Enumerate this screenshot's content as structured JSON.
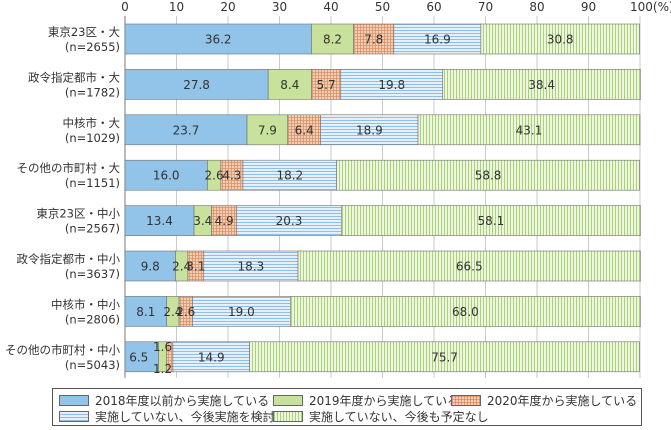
{
  "chart_data": {
    "type": "bar",
    "orientation": "horizontal",
    "stacked": true,
    "unit": "(%)",
    "xlim": [
      0,
      100
    ],
    "x_ticks": [
      "0",
      "10",
      "20",
      "30",
      "40",
      "50",
      "60",
      "70",
      "80",
      "90",
      "100"
    ],
    "grid": true,
    "legend_position": "bottom",
    "categories": [
      [
        "東京23区・大",
        "(n=2655)"
      ],
      [
        "政令指定都市・大",
        "(n=1782)"
      ],
      [
        "中核市・大",
        "(n=1029)"
      ],
      [
        "その他の市町村・大",
        "(n=1151)"
      ],
      [
        "東京23区・中小",
        "(n=2567)"
      ],
      [
        "政令指定都市・中小",
        "(n=3637)"
      ],
      [
        "中核市・中小",
        "(n=2806)"
      ],
      [
        "その他の市町村・中小",
        "(n=5043)"
      ]
    ],
    "series": [
      {
        "name": "2018年度以前から実施している",
        "color": "#92c4ea",
        "values": [
          36.2,
          27.8,
          23.7,
          16.0,
          13.4,
          9.8,
          8.1,
          6.5
        ]
      },
      {
        "name": "2019年度から実施している",
        "color": "#c8e29c",
        "values": [
          8.2,
          8.4,
          7.9,
          2.6,
          3.4,
          2.4,
          2.4,
          1.6
        ]
      },
      {
        "name": "2020年度から実施している",
        "color": "#f7cdb0",
        "values": [
          7.8,
          5.7,
          6.4,
          4.3,
          4.9,
          3.1,
          2.6,
          1.2
        ]
      },
      {
        "name": "実施していない、今後実施を検討",
        "color": "#d6e8f8",
        "values": [
          16.9,
          19.8,
          18.9,
          18.2,
          20.3,
          18.3,
          19.0,
          14.9
        ]
      },
      {
        "name": "実施していない、今後も予定なし",
        "color": "#e6f2d2",
        "values": [
          30.8,
          38.4,
          43.1,
          58.8,
          58.1,
          66.5,
          68.0,
          75.7
        ]
      }
    ],
    "data_labels": [
      [
        "36.2",
        "8.2",
        "7.8",
        "16.9",
        "30.8"
      ],
      [
        "27.8",
        "8.4",
        "5.7",
        "19.8",
        "38.4"
      ],
      [
        "23.7",
        "7.9",
        "6.4",
        "18.9",
        "43.1"
      ],
      [
        "16.0",
        "2.6",
        "4.3",
        "18.2",
        "58.8"
      ],
      [
        "13.4",
        "3.4",
        "4.9",
        "20.3",
        "58.1"
      ],
      [
        "9.8",
        "2.4",
        "3.1",
        "18.3",
        "66.5"
      ],
      [
        "8.1",
        "2.4",
        "2.6",
        "19.0",
        "68.0"
      ],
      [
        "6.5",
        "1.6",
        "1.2",
        "14.9",
        "75.7"
      ]
    ]
  }
}
